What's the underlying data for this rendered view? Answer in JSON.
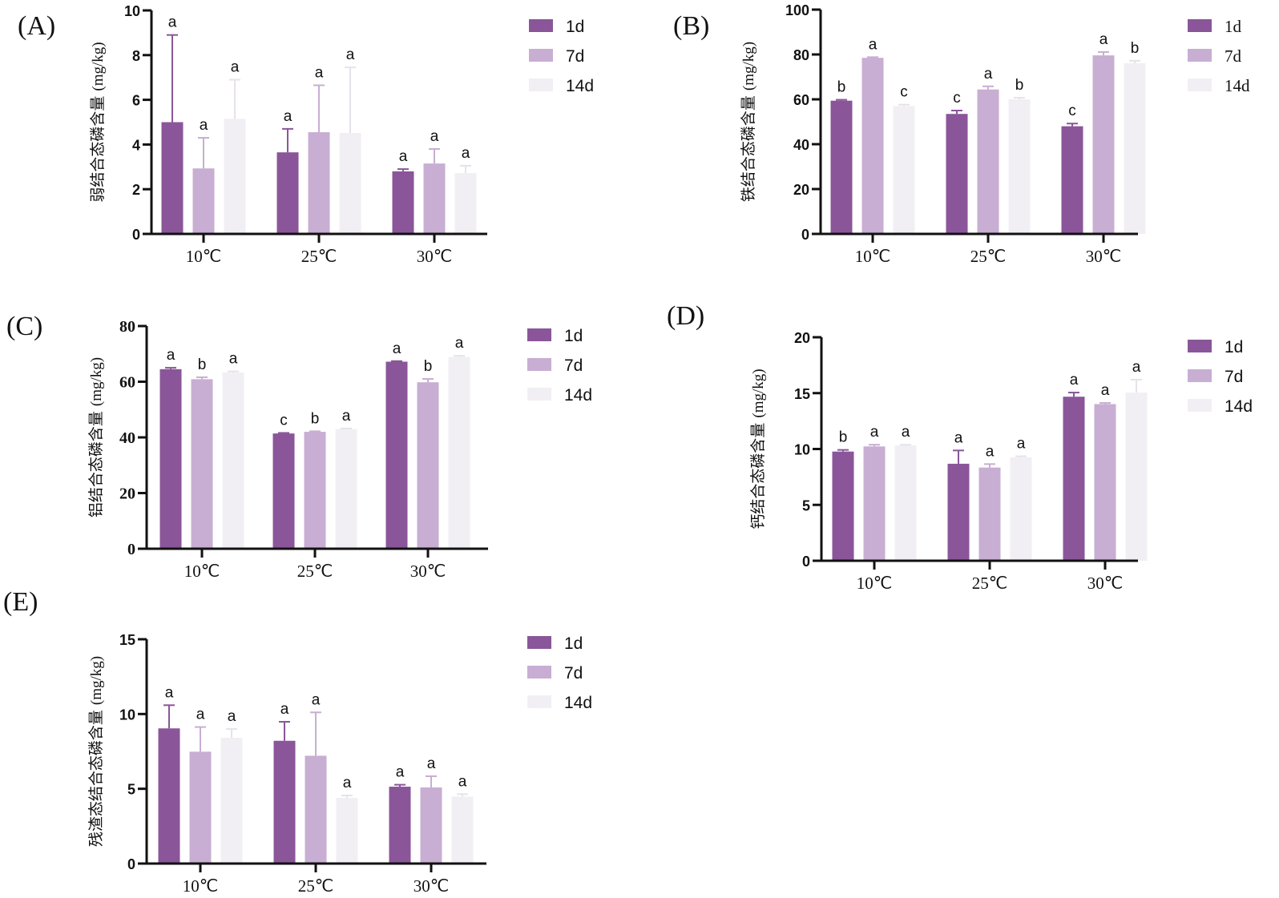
{
  "colors": {
    "1d": "#8a5699",
    "7d": "#c8aed3",
    "14d": "#f1eff3"
  },
  "chart_data": [
    {
      "id": "A",
      "panel_label": "(A)",
      "type": "bar",
      "ylabel_cn": "弱结合态磷含量",
      "ylabel_unit": "(mg/kg)",
      "categories": [
        "10℃",
        "25℃",
        "30℃"
      ],
      "ylim": [
        0,
        10
      ],
      "yticks": [
        0,
        2,
        4,
        6,
        8,
        10
      ],
      "legend_position": "right",
      "series": [
        {
          "name": "1d",
          "values": [
            5.0,
            3.65,
            2.8
          ],
          "err_upper": [
            8.9,
            4.7,
            2.9
          ],
          "letters": [
            "a",
            "a",
            "a"
          ]
        },
        {
          "name": "7d",
          "values": [
            2.93,
            4.55,
            3.15
          ],
          "err_upper": [
            4.3,
            6.65,
            3.8
          ],
          "letters": [
            "a",
            "a",
            "a"
          ]
        },
        {
          "name": "14d",
          "values": [
            5.15,
            4.52,
            2.72
          ],
          "err_upper": [
            6.9,
            7.45,
            3.05
          ],
          "letters": [
            "a",
            "a",
            "a"
          ]
        }
      ]
    },
    {
      "id": "B",
      "panel_label": "(B)",
      "type": "bar",
      "ylabel_cn": "铁结合态磷含量",
      "ylabel_unit": "(mg/kg)",
      "categories": [
        "10℃",
        "25℃",
        "30℃"
      ],
      "ylim": [
        0,
        100
      ],
      "yticks": [
        0,
        20,
        40,
        60,
        80,
        100
      ],
      "legend_position": "right",
      "series": [
        {
          "name": "1d",
          "values": [
            59.4,
            53.5,
            48.0
          ],
          "err_upper": [
            59.8,
            55.0,
            49.2
          ],
          "letters": [
            "b",
            "c",
            "c"
          ]
        },
        {
          "name": "7d",
          "values": [
            78.5,
            64.4,
            79.6
          ],
          "err_upper": [
            78.8,
            65.8,
            81.1
          ],
          "letters": [
            "a",
            "a",
            "a"
          ]
        },
        {
          "name": "14d",
          "values": [
            57.0,
            60.0,
            76.1
          ],
          "err_upper": [
            57.6,
            60.7,
            77.2
          ],
          "letters": [
            "c",
            "b",
            "b"
          ]
        }
      ]
    },
    {
      "id": "C",
      "panel_label": "(C)",
      "type": "bar",
      "ylabel_cn": "铝结合态磷含量",
      "ylabel_unit": "(mg/kg)",
      "categories": [
        "10℃",
        "25℃",
        "30℃"
      ],
      "ylim": [
        0,
        80
      ],
      "yticks": [
        0,
        20,
        40,
        60,
        80
      ],
      "legend_position": "right",
      "series": [
        {
          "name": "1d",
          "values": [
            64.5,
            41.4,
            67.2
          ],
          "err_upper": [
            65.0,
            41.6,
            67.4
          ],
          "letters": [
            "a",
            "c",
            "a"
          ]
        },
        {
          "name": "7d",
          "values": [
            60.9,
            42.0,
            59.8
          ],
          "err_upper": [
            61.6,
            42.2,
            61.0
          ],
          "letters": [
            "b",
            "b",
            "b"
          ]
        },
        {
          "name": "14d",
          "values": [
            63.3,
            43.0,
            68.9
          ],
          "err_upper": [
            63.7,
            43.2,
            69.3
          ],
          "letters": [
            "a",
            "a",
            "a"
          ]
        }
      ]
    },
    {
      "id": "D",
      "panel_label": "(D)",
      "type": "bar",
      "ylabel_cn": "钙结合态磷含量",
      "ylabel_unit": "(mg/kg)",
      "categories": [
        "10℃",
        "25℃",
        "30℃"
      ],
      "ylim": [
        0,
        20
      ],
      "yticks": [
        0,
        5,
        10,
        15,
        20
      ],
      "legend_position": "right",
      "series": [
        {
          "name": "1d",
          "values": [
            9.77,
            8.68,
            14.68
          ],
          "err_upper": [
            9.92,
            9.87,
            15.05
          ],
          "letters": [
            "b",
            "a",
            "a"
          ]
        },
        {
          "name": "7d",
          "values": [
            10.23,
            8.34,
            14.02
          ],
          "err_upper": [
            10.38,
            8.65,
            14.12
          ],
          "letters": [
            "a",
            "a",
            "a"
          ]
        },
        {
          "name": "14d",
          "values": [
            10.32,
            9.25,
            15.04
          ],
          "err_upper": [
            10.38,
            9.35,
            16.2
          ],
          "letters": [
            "a",
            "a",
            "a"
          ]
        }
      ]
    },
    {
      "id": "E",
      "panel_label": "(E)",
      "type": "bar",
      "ylabel_cn": "残渣态结合态磷含量",
      "ylabel_unit": "(mg/kg)",
      "categories": [
        "10℃",
        "25℃",
        "30℃"
      ],
      "ylim": [
        0,
        15
      ],
      "yticks": [
        0,
        5,
        10,
        15
      ],
      "legend_position": "right",
      "series": [
        {
          "name": "1d",
          "values": [
            9.04,
            8.21,
            5.14
          ],
          "err_upper": [
            10.59,
            9.48,
            5.27
          ],
          "letters": [
            "a",
            "a",
            "a"
          ]
        },
        {
          "name": "7d",
          "values": [
            7.48,
            7.21,
            5.09
          ],
          "err_upper": [
            9.13,
            10.11,
            5.84
          ],
          "letters": [
            "a",
            "a",
            "a"
          ]
        },
        {
          "name": "14d",
          "values": [
            8.41,
            4.39,
            4.48
          ],
          "err_upper": [
            9.0,
            4.55,
            4.64
          ],
          "letters": [
            "a",
            "a",
            "a"
          ]
        }
      ]
    }
  ]
}
